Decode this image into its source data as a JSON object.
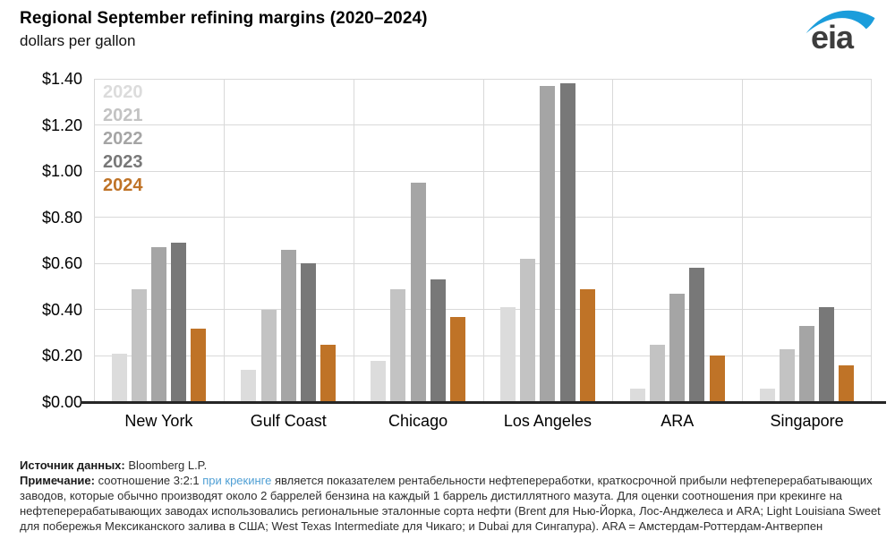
{
  "header": {
    "title": "Regional September refining margins (2020–2024)",
    "subtitle": "dollars per gallon",
    "logo_text": "eia"
  },
  "chart_data": {
    "type": "bar",
    "title": "Regional September refining margins (2020–2024)",
    "ylabel": "dollars per gallon",
    "categories": [
      "New York",
      "Gulf Coast",
      "Chicago",
      "Los Angeles",
      "ARA",
      "Singapore"
    ],
    "series": [
      {
        "name": "2020",
        "color": "#dcdcdc",
        "values": [
          0.21,
          0.14,
          0.18,
          0.41,
          0.06,
          0.06
        ]
      },
      {
        "name": "2021",
        "color": "#c3c3c3",
        "values": [
          0.49,
          0.4,
          0.49,
          0.62,
          0.25,
          0.23
        ]
      },
      {
        "name": "2022",
        "color": "#a5a5a5",
        "values": [
          0.67,
          0.66,
          0.95,
          1.37,
          0.47,
          0.33
        ]
      },
      {
        "name": "2023",
        "color": "#787878",
        "values": [
          0.69,
          0.6,
          0.53,
          1.38,
          0.58,
          0.41
        ]
      },
      {
        "name": "2024",
        "color": "#bf7327",
        "values": [
          0.32,
          0.25,
          0.37,
          0.49,
          0.2,
          0.16
        ]
      }
    ],
    "y_axis": {
      "min": 0,
      "max": 1.4,
      "step": 0.2,
      "tick_labels": [
        "$0.00",
        "$0.20",
        "$0.40",
        "$0.60",
        "$0.80",
        "$1.00",
        "$1.20",
        "$1.40"
      ]
    },
    "ylim": [
      0,
      1.4
    ],
    "grid": true,
    "legend_position": "top-left-inside"
  },
  "footer": {
    "source_label": "Источник данных:",
    "source_value": " Bloomberg L.P.",
    "note_label": "Примечание:",
    "note_before_link": " соотношение 3:2:1 ",
    "note_link": "при крекинге",
    "note_after_link": " является показателем рентабельности нефтепереработки, краткосрочной прибыли нефтеперерабатывающих заводов, которые обычно производят около 2 баррелей бензина на каждый 1 баррель дистиллятного мазута. Для оценки соотношения при крекинге на нефтеперерабатывающих заводах использовались региональные эталонные сорта нефти (Brent для Нью-Йорка, Лос-Анджелеса и ARA; Light Louisiana Sweet для побережья Мексиканского залива в США; West Texas Intermediate для Чикаго; и Dubai для Сингапура). ARA = Амстердам-Роттердам-Антверпен"
  },
  "colors": {
    "gridline": "#d9d9d9",
    "axis_line": "#262626",
    "link_blue": "#4f9fd4",
    "logo_swoosh": "#1b9ddb",
    "logo_text": "#3d3d3d"
  }
}
